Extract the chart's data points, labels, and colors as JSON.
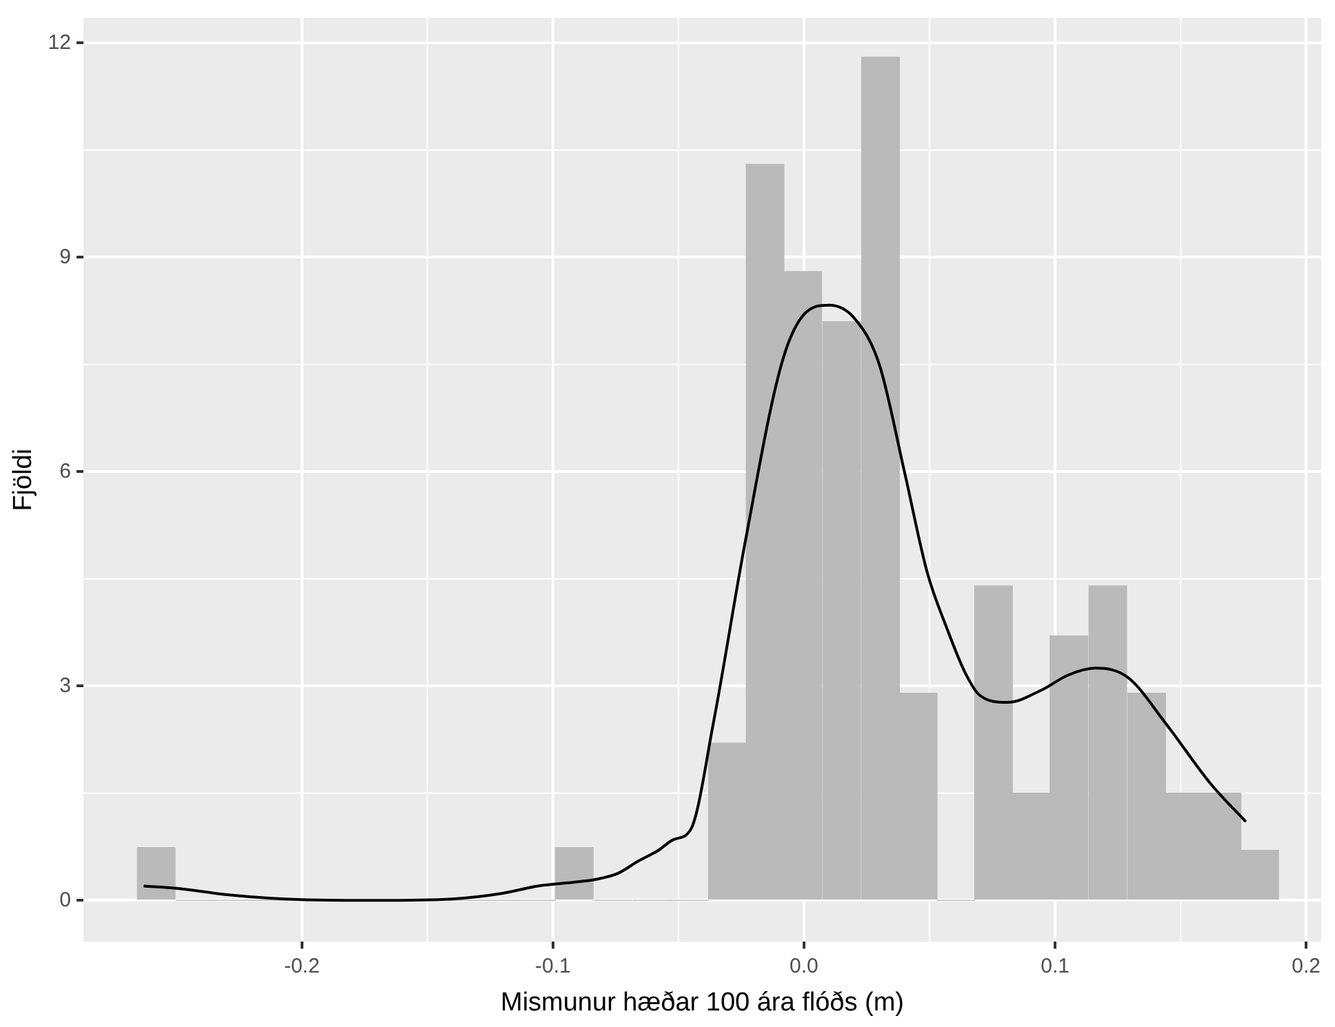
{
  "chart_data": {
    "type": "histogram",
    "xlabel": "Mismunur hæðar 100 ára flóðs (m)",
    "ylabel": "Fjöldi",
    "bins": [
      -0.266,
      -0.25,
      -0.235,
      -0.22,
      -0.205,
      -0.19,
      -0.175,
      -0.159,
      -0.144,
      -0.129,
      -0.114,
      -0.099,
      -0.084,
      -0.068,
      -0.053,
      -0.038,
      -0.023,
      -0.008,
      0.007,
      0.023,
      0.038,
      0.053,
      0.068,
      0.083,
      0.098,
      0.113,
      0.129,
      0.144,
      0.159,
      0.174,
      0.189
    ],
    "values": [
      0.74,
      0,
      0,
      0,
      0,
      0,
      0,
      0,
      0,
      0,
      0,
      0.74,
      0,
      0,
      0,
      2.2,
      10.3,
      8.8,
      8.1,
      11.8,
      2.9,
      0,
      4.4,
      1.5,
      3.7,
      4.4,
      2.9,
      1.5,
      1.5,
      0.7
    ],
    "color": "#bababa",
    "series": [
      {
        "type": "line",
        "color": "#000000",
        "x": [
          -0.263,
          -0.25,
          -0.23,
          -0.2,
          -0.17,
          -0.14,
          -0.12,
          -0.106,
          -0.09,
          -0.082,
          -0.074,
          -0.066,
          -0.058,
          -0.052,
          -0.045,
          -0.036,
          -0.0235,
          -0.009,
          0,
          0.01,
          0.02,
          0.03,
          0.04,
          0.049,
          0.057,
          0.064,
          0.07,
          0.081,
          0.095,
          0.105,
          0.116,
          0.129,
          0.144,
          0.162,
          0.176
        ],
        "values": [
          0.2,
          0.17,
          0.08,
          0.01,
          0,
          0.02,
          0.1,
          0.2,
          0.26,
          0.3,
          0.38,
          0.55,
          0.7,
          0.85,
          1.0,
          2.5,
          5.0,
          7.5,
          8.2,
          8.33,
          8.15,
          7.5,
          6.0,
          4.6,
          3.8,
          3.2,
          2.87,
          2.77,
          2.95,
          3.15,
          3.25,
          3.12,
          2.48,
          1.63,
          1.1
        ]
      }
    ],
    "xlim": [
      -0.287,
      0.206
    ],
    "xticks": [
      -0.2,
      -0.1,
      {
        "value": 0,
        "label": "0.0"
      },
      0.1,
      0.2
    ],
    "ylim": [
      -0.58,
      12.35
    ],
    "yticks": [
      0,
      3,
      6,
      9,
      12
    ],
    "grid": true,
    "legend": false
  }
}
